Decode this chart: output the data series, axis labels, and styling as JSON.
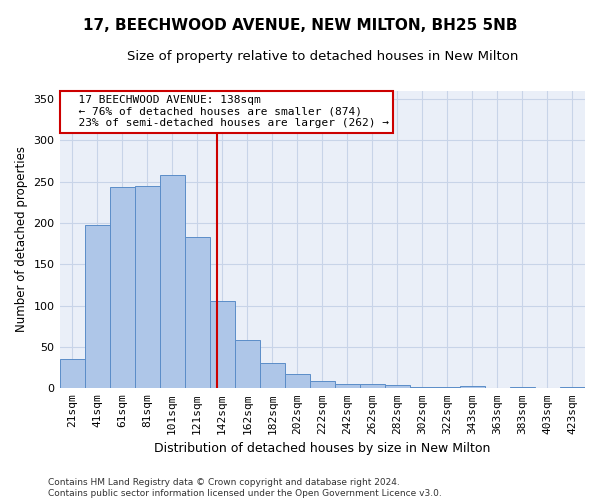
{
  "title": "17, BEECHWOOD AVENUE, NEW MILTON, BH25 5NB",
  "subtitle": "Size of property relative to detached houses in New Milton",
  "xlabel": "Distribution of detached houses by size in New Milton",
  "ylabel": "Number of detached properties",
  "footer_line1": "Contains HM Land Registry data © Crown copyright and database right 2024.",
  "footer_line2": "Contains public sector information licensed under the Open Government Licence v3.0.",
  "bar_labels": [
    "21sqm",
    "41sqm",
    "61sqm",
    "81sqm",
    "101sqm",
    "121sqm",
    "142sqm",
    "162sqm",
    "182sqm",
    "202sqm",
    "222sqm",
    "242sqm",
    "262sqm",
    "282sqm",
    "302sqm",
    "322sqm",
    "343sqm",
    "363sqm",
    "383sqm",
    "403sqm",
    "423sqm"
  ],
  "bar_heights": [
    35,
    198,
    243,
    245,
    258,
    183,
    106,
    58,
    30,
    17,
    9,
    5,
    5,
    4,
    2,
    2,
    3,
    0,
    1,
    0,
    2
  ],
  "bar_color": "#aec6e8",
  "bar_edge_color": "#5b8dc8",
  "annotation_line1": "  17 BEECHWOOD AVENUE: 138sqm",
  "annotation_line2": "  ← 76% of detached houses are smaller (874)",
  "annotation_line3": "  23% of semi-detached houses are larger (262) →",
  "annotation_box_color": "#ffffff",
  "annotation_box_edge_color": "#cc0000",
  "vline_color": "#cc0000",
  "grid_color": "#c8d4e8",
  "bg_color": "#eaeff8",
  "ylim": [
    0,
    360
  ],
  "title_fontsize": 11,
  "subtitle_fontsize": 9.5,
  "xlabel_fontsize": 9,
  "ylabel_fontsize": 8.5,
  "tick_fontsize": 8,
  "annotation_fontsize": 8,
  "footer_fontsize": 6.5
}
